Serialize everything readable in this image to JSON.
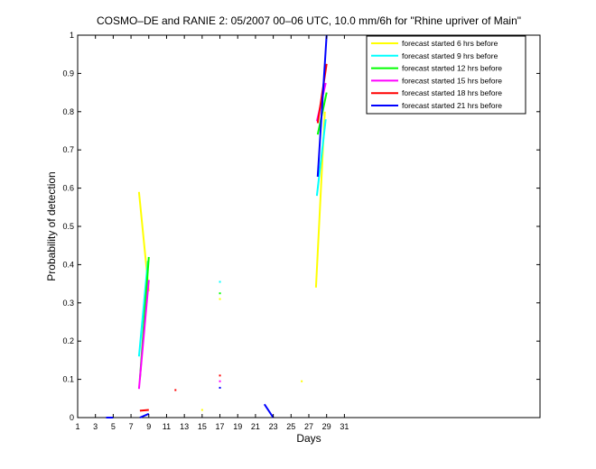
{
  "chart_data": {
    "type": "line",
    "title": "COSMO–DE and RANIE 2: 05/2007 00–06 UTC, 10.0 mm/6h for \"Rhine upriver of Main\"",
    "xlabel": "Days",
    "ylabel": "Probability of detection",
    "xlim": [
      1,
      53
    ],
    "ylim": [
      0,
      1
    ],
    "xticks": [
      1,
      3,
      5,
      7,
      9,
      11,
      13,
      15,
      17,
      19,
      21,
      23,
      25,
      27,
      29,
      31
    ],
    "yticks": [
      0,
      0.1,
      0.2,
      0.3,
      0.4,
      0.5,
      0.6,
      0.7,
      0.8,
      0.9,
      1
    ],
    "ytick_labels": [
      "0",
      "0.1",
      "0.2",
      "0.3",
      "0.4",
      "0.5",
      "0.6",
      "0.7",
      "0.8",
      "0.9",
      "1"
    ],
    "grid": false,
    "legend_position": "top-right",
    "series": [
      {
        "name": "forecast started 6 hrs before",
        "color": "#ffff00",
        "segments": [
          [
            [
              7.9,
              0.59
            ],
            [
              9.0,
              0.33
            ]
          ],
          [
            [
              27.8,
              0.34
            ],
            [
              28.8,
              0.8
            ]
          ]
        ],
        "points": [
          [
            15,
            0.02
          ],
          [
            17,
            0.31
          ],
          [
            26.2,
            0.095
          ]
        ]
      },
      {
        "name": "forecast started 9 hrs before",
        "color": "#00ffff",
        "segments": [
          [
            [
              7.9,
              0.16
            ],
            [
              8.9,
              0.41
            ]
          ],
          [
            [
              27.9,
              0.58
            ],
            [
              28.9,
              0.78
            ]
          ]
        ],
        "points": [
          [
            17,
            0.355
          ]
        ]
      },
      {
        "name": "forecast started 12 hrs before",
        "color": "#00ff00",
        "segments": [
          [
            [
              8.0,
              0.1
            ],
            [
              9.0,
              0.42
            ]
          ],
          [
            [
              28.0,
              0.74
            ],
            [
              29.0,
              0.85
            ]
          ]
        ],
        "points": [
          [
            17,
            0.325
          ]
        ]
      },
      {
        "name": "forecast started 15 hrs before",
        "color": "#ff00ff",
        "segments": [
          [
            [
              7.9,
              0.075
            ],
            [
              9.0,
              0.36
            ]
          ],
          [
            [
              27.9,
              0.775
            ],
            [
              28.9,
              0.875
            ]
          ]
        ],
        "points": [
          [
            17,
            0.095
          ]
        ]
      },
      {
        "name": "forecast started 18 hrs before",
        "color": "#ff0000",
        "segments": [
          [
            [
              8.0,
              0.018
            ],
            [
              9.0,
              0.02
            ]
          ],
          [
            [
              28.0,
              0.77
            ],
            [
              29.0,
              0.925
            ]
          ]
        ],
        "points": [
          [
            12,
            0.072
          ],
          [
            17,
            0.11
          ]
        ]
      },
      {
        "name": "forecast started 21 hrs before",
        "color": "#0000ff",
        "segments": [
          [
            [
              4.2,
              0.0
            ],
            [
              5.0,
              0.0
            ]
          ],
          [
            [
              8.0,
              0.0
            ],
            [
              9.0,
              0.01
            ]
          ],
          [
            [
              22.0,
              0.035
            ],
            [
              23.0,
              0.0
            ]
          ],
          [
            [
              28.0,
              0.63
            ],
            [
              29.0,
              1.0
            ]
          ]
        ],
        "points": [
          [
            17,
            0.078
          ]
        ]
      }
    ]
  }
}
